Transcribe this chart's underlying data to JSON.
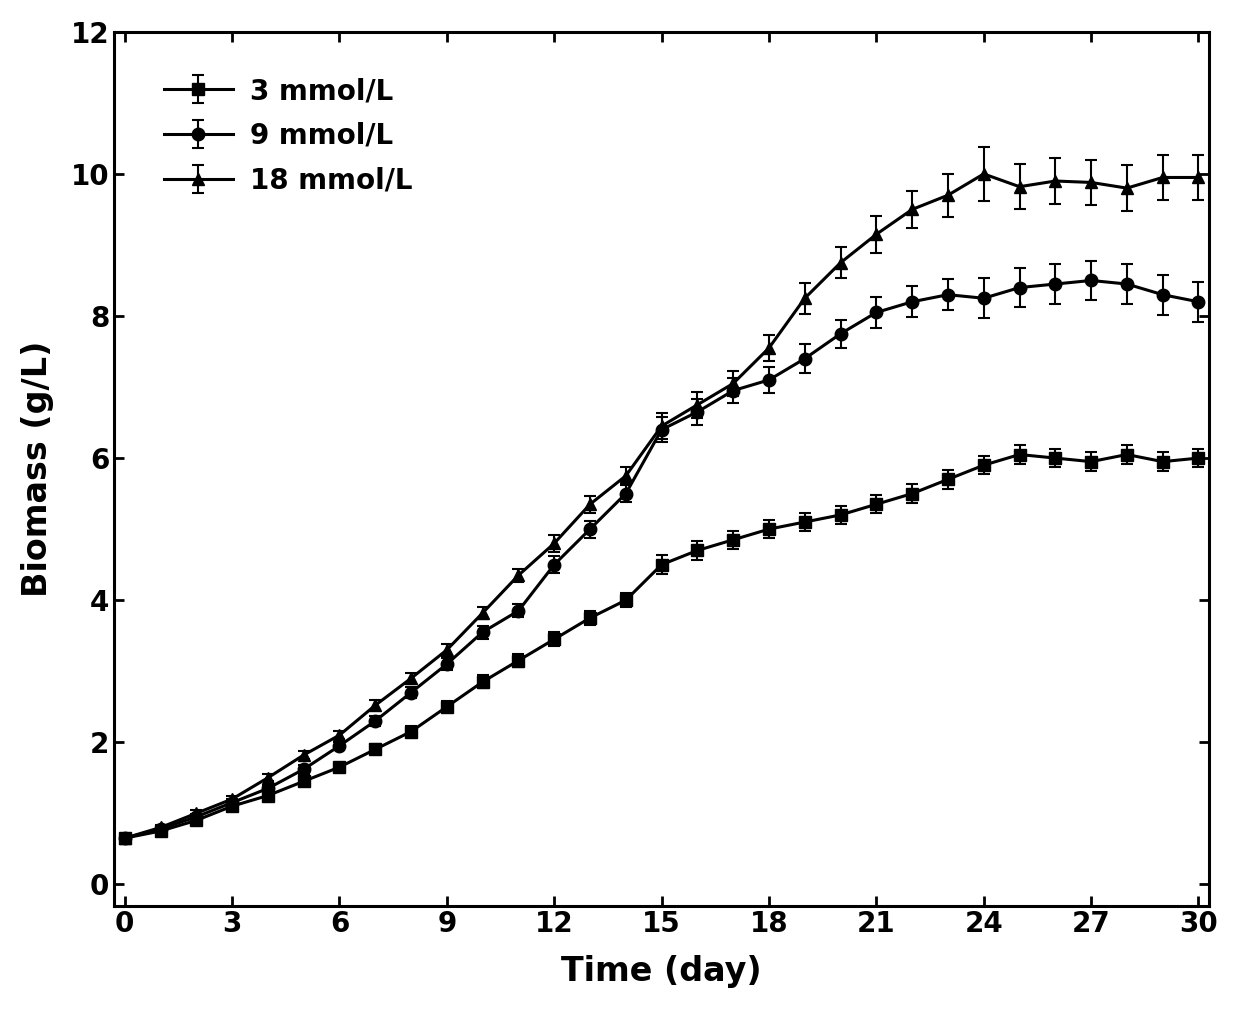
{
  "time_days": [
    0,
    1,
    2,
    3,
    4,
    5,
    6,
    7,
    8,
    9,
    10,
    11,
    12,
    13,
    14,
    15,
    16,
    17,
    18,
    19,
    20,
    21,
    22,
    23,
    24,
    25,
    26,
    27,
    28,
    29,
    30
  ],
  "series_3mmol": [
    0.65,
    0.75,
    0.9,
    1.1,
    1.25,
    1.45,
    1.65,
    1.9,
    2.15,
    2.5,
    2.85,
    3.15,
    3.45,
    3.75,
    4.0,
    4.5,
    4.7,
    4.85,
    5.0,
    5.1,
    5.2,
    5.35,
    5.5,
    5.7,
    5.9,
    6.05,
    6.0,
    5.95,
    6.05,
    5.95,
    6.0
  ],
  "series_9mmol": [
    0.65,
    0.78,
    0.95,
    1.15,
    1.35,
    1.62,
    1.95,
    2.3,
    2.7,
    3.1,
    3.55,
    3.85,
    4.5,
    5.0,
    5.5,
    6.4,
    6.65,
    6.95,
    7.1,
    7.4,
    7.75,
    8.05,
    8.2,
    8.3,
    8.25,
    8.4,
    8.45,
    8.5,
    8.45,
    8.3,
    8.2
  ],
  "series_18mmol": [
    0.65,
    0.8,
    1.0,
    1.2,
    1.5,
    1.82,
    2.1,
    2.52,
    2.9,
    3.3,
    3.82,
    4.35,
    4.8,
    5.35,
    5.75,
    6.45,
    6.75,
    7.05,
    7.55,
    8.25,
    8.75,
    9.15,
    9.5,
    9.7,
    10.0,
    9.82,
    9.9,
    9.88,
    9.8,
    9.95,
    9.95
  ],
  "err_3mmol": [
    0.04,
    0.04,
    0.04,
    0.05,
    0.05,
    0.06,
    0.06,
    0.07,
    0.08,
    0.08,
    0.09,
    0.09,
    0.1,
    0.1,
    0.1,
    0.13,
    0.13,
    0.13,
    0.13,
    0.13,
    0.13,
    0.13,
    0.13,
    0.13,
    0.13,
    0.13,
    0.13,
    0.13,
    0.13,
    0.13,
    0.13
  ],
  "err_9mmol": [
    0.04,
    0.04,
    0.04,
    0.05,
    0.05,
    0.06,
    0.06,
    0.07,
    0.08,
    0.08,
    0.09,
    0.09,
    0.12,
    0.12,
    0.12,
    0.18,
    0.18,
    0.18,
    0.18,
    0.2,
    0.2,
    0.22,
    0.22,
    0.22,
    0.28,
    0.28,
    0.28,
    0.28,
    0.28,
    0.28,
    0.28
  ],
  "err_18mmol": [
    0.04,
    0.04,
    0.04,
    0.05,
    0.05,
    0.06,
    0.06,
    0.07,
    0.08,
    0.08,
    0.09,
    0.09,
    0.12,
    0.12,
    0.12,
    0.18,
    0.18,
    0.18,
    0.18,
    0.22,
    0.22,
    0.26,
    0.26,
    0.3,
    0.38,
    0.32,
    0.32,
    0.32,
    0.32,
    0.32,
    0.32
  ],
  "xlabel": "Time (day)",
  "ylabel": "Biomass (g/L)",
  "xlim": [
    -0.3,
    30.3
  ],
  "ylim": [
    -0.3,
    12
  ],
  "xticks": [
    0,
    3,
    6,
    9,
    12,
    15,
    18,
    21,
    24,
    27,
    30
  ],
  "yticks": [
    0,
    2,
    4,
    6,
    8,
    10,
    12
  ],
  "legend_labels": [
    "3 mmol/L",
    "9 mmol/L",
    "18 mmol/L"
  ],
  "line_color": "#000000",
  "bg_color": "#ffffff"
}
